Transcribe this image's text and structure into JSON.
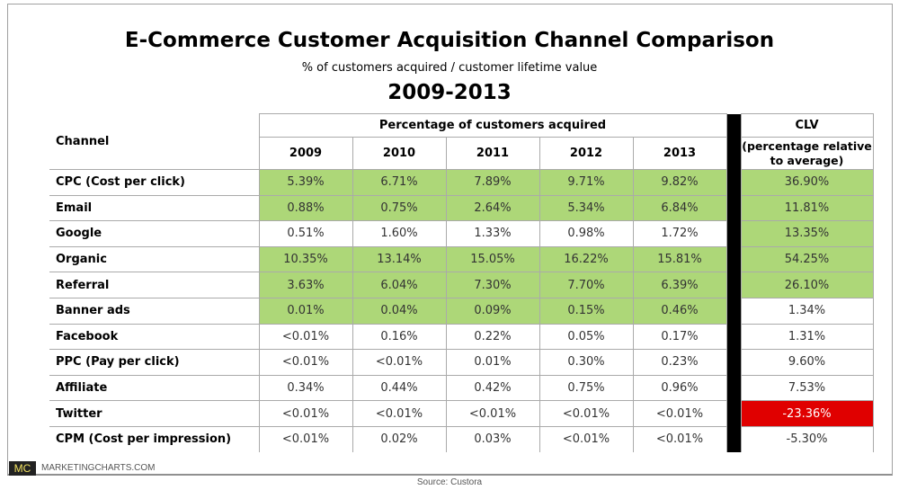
{
  "chart_data": {
    "type": "table",
    "title": "E-Commerce Customer Acquisition Channel Comparison",
    "subtitle": "% of customers acquired / customer lifetime value",
    "period": "2009-2013",
    "group_header": "Percentage of customers acquired",
    "clv_header": "CLV",
    "clv_subheader": "(percentage relative to average)",
    "channel_header": "Channel",
    "years": [
      "2009",
      "2010",
      "2011",
      "2012",
      "2013"
    ],
    "rows": [
      {
        "channel": "CPC (Cost per click)",
        "values": [
          "5.39%",
          "6.71%",
          "7.89%",
          "9.71%",
          "9.82%"
        ],
        "clv": "36.90%",
        "years_highlight": "green",
        "clv_highlight": "green"
      },
      {
        "channel": "Email",
        "values": [
          "0.88%",
          "0.75%",
          "2.64%",
          "5.34%",
          "6.84%"
        ],
        "clv": "11.81%",
        "years_highlight": "green",
        "clv_highlight": "green"
      },
      {
        "channel": "Google",
        "values": [
          "0.51%",
          "1.60%",
          "1.33%",
          "0.98%",
          "1.72%"
        ],
        "clv": "13.35%",
        "years_highlight": "none",
        "clv_highlight": "green"
      },
      {
        "channel": "Organic",
        "values": [
          "10.35%",
          "13.14%",
          "15.05%",
          "16.22%",
          "15.81%"
        ],
        "clv": "54.25%",
        "years_highlight": "green",
        "clv_highlight": "green"
      },
      {
        "channel": "Referral",
        "values": [
          "3.63%",
          "6.04%",
          "7.30%",
          "7.70%",
          "6.39%"
        ],
        "clv": "26.10%",
        "years_highlight": "green",
        "clv_highlight": "green"
      },
      {
        "channel": "Banner ads",
        "values": [
          "0.01%",
          "0.04%",
          "0.09%",
          "0.15%",
          "0.46%"
        ],
        "clv": "1.34%",
        "years_highlight": "green",
        "clv_highlight": "none"
      },
      {
        "channel": "Facebook",
        "values": [
          "<0.01%",
          "0.16%",
          "0.22%",
          "0.05%",
          "0.17%"
        ],
        "clv": "1.31%",
        "years_highlight": "none",
        "clv_highlight": "none"
      },
      {
        "channel": "PPC (Pay per click)",
        "values": [
          "<0.01%",
          "<0.01%",
          "0.01%",
          "0.30%",
          "0.23%"
        ],
        "clv": "9.60%",
        "years_highlight": "none",
        "clv_highlight": "none"
      },
      {
        "channel": "Affiliate",
        "values": [
          "0.34%",
          "0.44%",
          "0.42%",
          "0.75%",
          "0.96%"
        ],
        "clv": "7.53%",
        "years_highlight": "none",
        "clv_highlight": "none"
      },
      {
        "channel": "Twitter",
        "values": [
          "<0.01%",
          "<0.01%",
          "<0.01%",
          "<0.01%",
          "<0.01%"
        ],
        "clv": "-23.36%",
        "years_highlight": "none",
        "clv_highlight": "red"
      },
      {
        "channel": "CPM (Cost per impression)",
        "values": [
          "<0.01%",
          "0.02%",
          "0.03%",
          "<0.01%",
          "<0.01%"
        ],
        "clv": "-5.30%",
        "years_highlight": "none",
        "clv_highlight": "none"
      }
    ],
    "colors": {
      "green": "#add778",
      "red": "#e00000",
      "separator": "#000000"
    }
  },
  "footer": {
    "logo": "MC",
    "brand": "MARKETINGCHARTS.COM",
    "source": "Source: Custora"
  }
}
